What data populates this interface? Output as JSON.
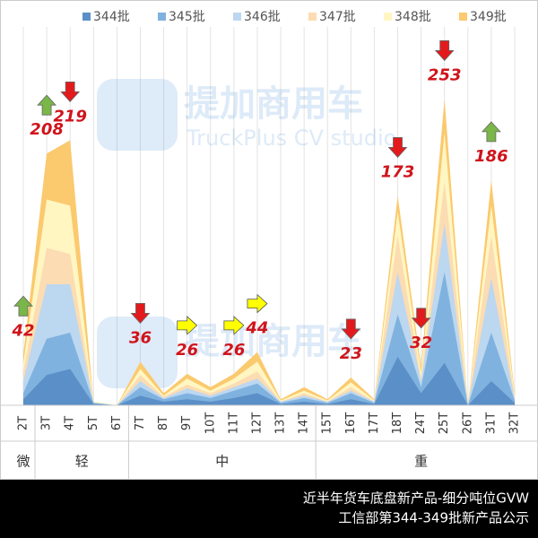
{
  "chart_data": {
    "type": "area",
    "categories": [
      "2T",
      "3T",
      "4T",
      "5T",
      "6T",
      "7T",
      "8T",
      "9T",
      "10T",
      "11T",
      "12T",
      "13T",
      "14T",
      "15T",
      "16T",
      "17T",
      "18T",
      "24T",
      "25T",
      "26T",
      "31T",
      "32T"
    ],
    "groups": [
      "微",
      "轻",
      "轻",
      "轻",
      "轻",
      "中",
      "中",
      "中",
      "中",
      "中",
      "中",
      "中",
      "中",
      "重",
      "重",
      "重",
      "重",
      "重",
      "重",
      "重",
      "重",
      "重"
    ],
    "series": [
      {
        "name": "344批",
        "color": "#5b8fc7",
        "values": [
          5,
          25,
          30,
          1,
          0,
          8,
          3,
          5,
          3,
          6,
          10,
          1,
          3,
          1,
          5,
          1,
          40,
          10,
          35,
          0,
          20,
          2
        ]
      },
      {
        "name": "345批",
        "color": "#80b2df",
        "values": [
          10,
          55,
          60,
          2,
          0,
          15,
          5,
          10,
          6,
          12,
          18,
          2,
          6,
          2,
          10,
          2,
          75,
          15,
          110,
          0,
          60,
          4
        ]
      },
      {
        "name": "346批",
        "color": "#bcd7f0",
        "values": [
          20,
          100,
          100,
          2,
          0,
          20,
          6,
          14,
          8,
          15,
          22,
          3,
          8,
          3,
          12,
          3,
          110,
          20,
          150,
          0,
          105,
          5
        ]
      },
      {
        "name": "347批",
        "color": "#fcdcb2",
        "values": [
          28,
          130,
          125,
          2,
          0,
          25,
          7,
          17,
          10,
          18,
          28,
          3,
          10,
          3,
          15,
          3,
          140,
          22,
          185,
          0,
          140,
          6
        ]
      },
      {
        "name": "348批",
        "color": "#fff6c2",
        "values": [
          35,
          170,
          165,
          3,
          0,
          30,
          8,
          22,
          12,
          22,
          36,
          4,
          12,
          4,
          19,
          4,
          160,
          27,
          225,
          0,
          165,
          8
        ]
      },
      {
        "name": "349批",
        "color": "#fbc96e",
        "values": [
          42,
          208,
          219,
          3,
          0,
          36,
          10,
          26,
          15,
          26,
          44,
          5,
          15,
          5,
          23,
          5,
          173,
          32,
          253,
          0,
          186,
          10
        ]
      }
    ],
    "trend_arrows": [
      "up",
      "up",
      "down",
      null,
      null,
      "down",
      null,
      "right",
      null,
      "right",
      "right",
      null,
      null,
      null,
      "down",
      null,
      "down",
      "down",
      "down",
      null,
      "up",
      null
    ],
    "arrow_colors": {
      "up": "#7ab648",
      "down": "#e31a1c",
      "right": "#ffff00"
    },
    "label_color": "#d0141c",
    "ylim": [
      0,
      260
    ],
    "grid": true,
    "legend": "top",
    "watermark": {
      "brand": "提加商用车",
      "sub": "TruckPlus CV studio"
    },
    "footer": [
      "近半年货车底盘新产品-细分吨位GVW",
      "工信部第344-349批新产品公示"
    ]
  }
}
